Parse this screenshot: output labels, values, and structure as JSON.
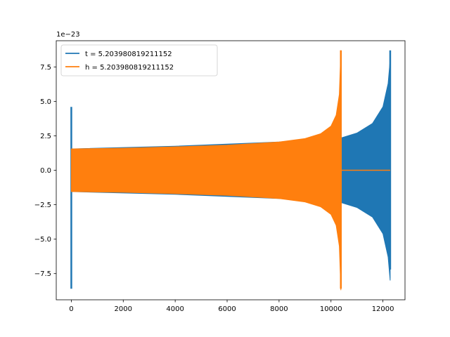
{
  "chart_data": {
    "type": "line",
    "title": "",
    "xlabel": "",
    "ylabel": "",
    "y_offset_label": "1e−23",
    "xlim": [
      -580,
      12850
    ],
    "ylim": [
      -9.4,
      9.4
    ],
    "x_ticks": [
      0,
      2000,
      4000,
      6000,
      8000,
      10000,
      12000
    ],
    "x_tick_labels": [
      "0",
      "2000",
      "4000",
      "6000",
      "8000",
      "10000",
      "12000"
    ],
    "y_ticks": [
      -7.5,
      -5.0,
      -2.5,
      0.0,
      2.5,
      5.0,
      7.5
    ],
    "y_tick_labels": [
      "−7.5",
      "−5.0",
      "−2.5",
      "0.0",
      "2.5",
      "5.0",
      "7.5"
    ],
    "grid": false,
    "legend_position": "top-left",
    "series": [
      {
        "name": "t = 5.203980819211152",
        "color": "#1f77b4",
        "spike": {
          "x": 0,
          "min": -8.6,
          "max": 4.6
        },
        "envelope": [
          {
            "x": 0,
            "amp": 1.55
          },
          {
            "x": 4000,
            "amp": 1.75
          },
          {
            "x": 8000,
            "amp": 2.05
          },
          {
            "x": 10400,
            "amp": 2.35
          },
          {
            "x": 11000,
            "amp": 2.7
          },
          {
            "x": 11600,
            "amp": 3.4
          },
          {
            "x": 12000,
            "amp": 4.6
          },
          {
            "x": 12200,
            "amp": 6.3
          },
          {
            "x": 12280,
            "amp": 8.0
          }
        ],
        "end": {
          "x": 12280,
          "min": -7.2,
          "max": 8.7
        }
      },
      {
        "name": "h = 5.203980819211152",
        "color": "#ff7f0e",
        "envelope": [
          {
            "x": 0,
            "amp": 1.55
          },
          {
            "x": 2000,
            "amp": 1.6
          },
          {
            "x": 4000,
            "amp": 1.7
          },
          {
            "x": 6000,
            "amp": 1.82
          },
          {
            "x": 8000,
            "amp": 2.05
          },
          {
            "x": 9000,
            "amp": 2.3
          },
          {
            "x": 9600,
            "amp": 2.65
          },
          {
            "x": 10000,
            "amp": 3.2
          },
          {
            "x": 10200,
            "amp": 4.0
          },
          {
            "x": 10320,
            "amp": 5.5
          },
          {
            "x": 10380,
            "amp": 8.7
          }
        ],
        "end": {
          "x": 10380,
          "min": -8.6,
          "max": 8.7
        },
        "tail": {
          "x_start": 10400,
          "x_end": 12280,
          "value": 0.0
        }
      }
    ]
  }
}
